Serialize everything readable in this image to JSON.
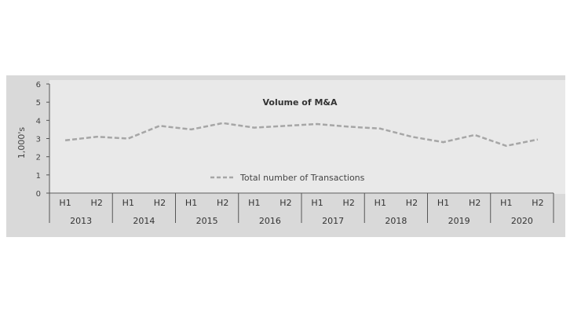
{
  "chart_data": {
    "type": "line",
    "title": "Volume of M&A",
    "ylabel": "1,000's",
    "xlabel": "",
    "ylim": [
      0,
      6
    ],
    "yticks": [
      "0",
      "1",
      "2",
      "3",
      "4",
      "5",
      "6"
    ],
    "grid": false,
    "legend_position": "bottom-center",
    "categories": [
      "H1",
      "H2",
      "H1",
      "H2",
      "H1",
      "H2",
      "H1",
      "H2",
      "H1",
      "H2",
      "H1",
      "H2",
      "H1",
      "H2",
      "H1",
      "H2"
    ],
    "groups": [
      "2013",
      "2014",
      "2015",
      "2016",
      "2017",
      "2018",
      "2019",
      "2020"
    ],
    "series": [
      {
        "name": "Total number of Transactions",
        "color": "#a6a6a6",
        "style": "dashed",
        "values": [
          2.9,
          3.1,
          3.0,
          3.7,
          3.5,
          3.85,
          3.6,
          3.7,
          3.8,
          3.65,
          3.55,
          3.1,
          2.8,
          3.2,
          2.6,
          2.95
        ]
      }
    ]
  }
}
